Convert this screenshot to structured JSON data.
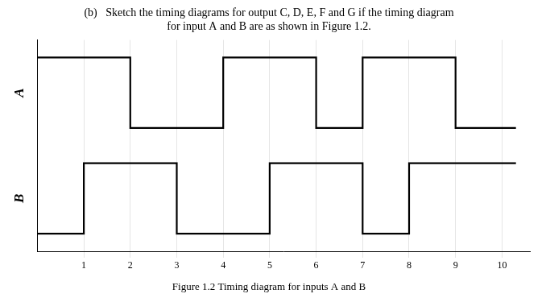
{
  "chart_data": {
    "type": "line",
    "title": [
      "(b)   Sketch the timing diagrams for output C, D, E, F and G if the timing diagram",
      "for input A and B are as shown in Figure 1.2."
    ],
    "subtitle": "Figure 1.2 Timing diagram for inputs A and B",
    "series": [
      {
        "name": "A",
        "color": "#000000",
        "axis": "y2",
        "x": [
          0,
          2,
          2,
          4,
          4,
          6,
          6,
          7,
          7,
          9,
          9,
          10.3
        ],
        "values": [
          1,
          1,
          0,
          0,
          1,
          1,
          0,
          0,
          1,
          1,
          0,
          0
        ]
      },
      {
        "name": "B",
        "color": "#000000",
        "x": [
          0,
          1,
          1,
          3,
          3,
          5,
          5,
          7,
          7,
          8,
          8,
          10.3
        ],
        "values": [
          0,
          0,
          1,
          1,
          0,
          0,
          1,
          1,
          0,
          0,
          1,
          1
        ]
      }
    ],
    "xlim": [
      0.0,
      10.6
    ],
    "xticks": [
      1,
      2,
      3,
      4,
      5,
      6,
      7,
      8,
      9,
      10
    ],
    "ylim": [
      -0.25,
      1.25
    ],
    "y2lim": [
      -0.25,
      1.25
    ],
    "grid": true,
    "tick_labels": "x"
  }
}
